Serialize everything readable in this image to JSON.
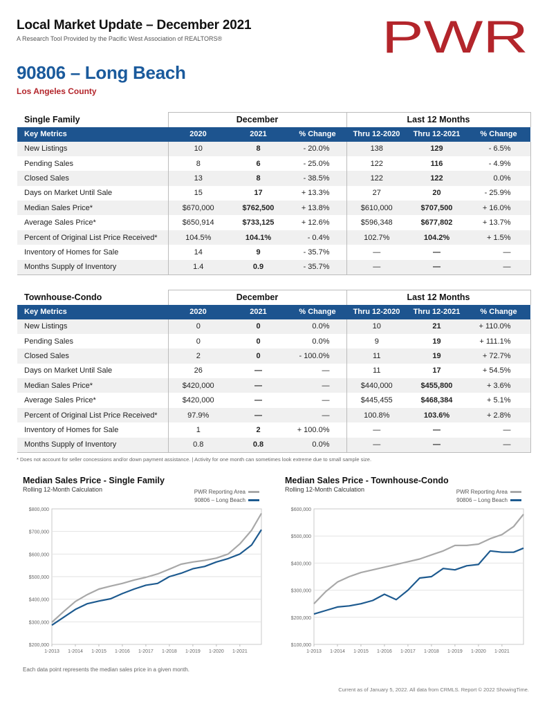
{
  "header": {
    "title": "Local Market Update – December 2021",
    "subtitle": "A Research Tool Provided by the Pacific West Association of REALTORS®",
    "logo_text": "PWR",
    "brand_color": "#b3252b"
  },
  "area": {
    "name": "90806 – Long Beach",
    "county": "Los Angeles County"
  },
  "single_family": {
    "type_label": "Single Family",
    "group_december": "December",
    "group_last12": "Last 12 Months",
    "columns": [
      "Key Metrics",
      "2020",
      "2021",
      "% Change",
      "Thru 12-2020",
      "Thru 12-2021",
      "% Change"
    ],
    "rows": [
      [
        "New Listings",
        "10",
        "8",
        "- 20.0%",
        "138",
        "129",
        "- 6.5%"
      ],
      [
        "Pending Sales",
        "8",
        "6",
        "- 25.0%",
        "122",
        "116",
        "- 4.9%"
      ],
      [
        "Closed Sales",
        "13",
        "8",
        "- 38.5%",
        "122",
        "122",
        "0.0%"
      ],
      [
        "Days on Market Until Sale",
        "15",
        "17",
        "+ 13.3%",
        "27",
        "20",
        "- 25.9%"
      ],
      [
        "Median Sales Price*",
        "$670,000",
        "$762,500",
        "+ 13.8%",
        "$610,000",
        "$707,500",
        "+ 16.0%"
      ],
      [
        "Average Sales Price*",
        "$650,914",
        "$733,125",
        "+ 12.6%",
        "$596,348",
        "$677,802",
        "+ 13.7%"
      ],
      [
        "Percent of Original List Price Received*",
        "104.5%",
        "104.1%",
        "- 0.4%",
        "102.7%",
        "104.2%",
        "+ 1.5%"
      ],
      [
        "Inventory of Homes for Sale",
        "14",
        "9",
        "- 35.7%",
        "—",
        "—",
        "—"
      ],
      [
        "Months Supply of Inventory",
        "1.4",
        "0.9",
        "- 35.7%",
        "—",
        "—",
        "—"
      ]
    ]
  },
  "townhouse_condo": {
    "type_label": "Townhouse-Condo",
    "group_december": "December",
    "group_last12": "Last 12 Months",
    "columns": [
      "Key Metrics",
      "2020",
      "2021",
      "% Change",
      "Thru 12-2020",
      "Thru 12-2021",
      "% Change"
    ],
    "rows": [
      [
        "New Listings",
        "0",
        "0",
        "0.0%",
        "10",
        "21",
        "+ 110.0%"
      ],
      [
        "Pending Sales",
        "0",
        "0",
        "0.0%",
        "9",
        "19",
        "+ 111.1%"
      ],
      [
        "Closed Sales",
        "2",
        "0",
        "- 100.0%",
        "11",
        "19",
        "+ 72.7%"
      ],
      [
        "Days on Market Until Sale",
        "26",
        "—",
        "—",
        "11",
        "17",
        "+ 54.5%"
      ],
      [
        "Median Sales Price*",
        "$420,000",
        "—",
        "—",
        "$440,000",
        "$455,800",
        "+ 3.6%"
      ],
      [
        "Average Sales Price*",
        "$420,000",
        "—",
        "—",
        "$445,455",
        "$468,384",
        "+ 5.1%"
      ],
      [
        "Percent of Original List Price Received*",
        "97.9%",
        "—",
        "—",
        "100.8%",
        "103.6%",
        "+ 2.8%"
      ],
      [
        "Inventory of Homes for Sale",
        "1",
        "2",
        "+ 100.0%",
        "—",
        "—",
        "—"
      ],
      [
        "Months Supply of Inventory",
        "0.8",
        "0.8",
        "0.0%",
        "—",
        "—",
        "—"
      ]
    ]
  },
  "footnote": "* Does not account for seller concessions and/or down payment assistance. | Activity for one month can sometimes look extreme due to small sample size.",
  "chart_note": "Each data point represents the median sales price in a given month.",
  "credit": "Current as of January 5, 2022. All data from CRMLS. Report © 2022 ShowingTime.",
  "colors": {
    "table_header": "#1d548f",
    "title_blue": "#1a5a9c",
    "series_area": "#a8a8a8",
    "series_local": "#1d5a8f"
  },
  "chart_data": [
    {
      "type": "line",
      "title": "Median Sales Price - Single Family",
      "subtitle": "Rolling 12-Month Calculation",
      "x_ticks": [
        "1-2013",
        "1-2014",
        "1-2015",
        "1-2016",
        "1-2017",
        "1-2018",
        "1-2019",
        "1-2020",
        "1-2021"
      ],
      "x_range": [
        "2013-01",
        "2021-12"
      ],
      "y_ticks": [
        "$200,000",
        "$300,000",
        "$400,000",
        "$500,000",
        "$600,000",
        "$700,000",
        "$800,000"
      ],
      "ylim": [
        200000,
        800000
      ],
      "grid": true,
      "legend": "top-right",
      "series": [
        {
          "name": "PWR Reporting Area",
          "color": "#a8a8a8",
          "x": [
            "2013-01",
            "2013-07",
            "2014-01",
            "2014-07",
            "2015-01",
            "2015-07",
            "2016-01",
            "2016-07",
            "2017-01",
            "2017-07",
            "2018-01",
            "2018-07",
            "2019-01",
            "2019-07",
            "2020-01",
            "2020-07",
            "2021-01",
            "2021-07",
            "2021-12"
          ],
          "values": [
            298000,
            345000,
            390000,
            420000,
            445000,
            458000,
            470000,
            485000,
            497000,
            512000,
            533000,
            555000,
            565000,
            572000,
            582000,
            600000,
            645000,
            705000,
            780000
          ]
        },
        {
          "name": "90806 – Long Beach",
          "color": "#1d5a8f",
          "x": [
            "2013-01",
            "2013-07",
            "2014-01",
            "2014-07",
            "2015-01",
            "2015-07",
            "2016-01",
            "2016-07",
            "2017-01",
            "2017-07",
            "2018-01",
            "2018-07",
            "2019-01",
            "2019-07",
            "2020-01",
            "2020-07",
            "2021-01",
            "2021-07",
            "2021-12"
          ],
          "values": [
            285000,
            320000,
            355000,
            380000,
            392000,
            402000,
            425000,
            445000,
            462000,
            470000,
            500000,
            515000,
            535000,
            545000,
            565000,
            580000,
            600000,
            640000,
            708000
          ]
        }
      ]
    },
    {
      "type": "line",
      "title": "Median Sales Price - Townhouse-Condo",
      "subtitle": "Rolling 12-Month Calculation",
      "x_ticks": [
        "1-2013",
        "1-2014",
        "1-2015",
        "1-2016",
        "1-2017",
        "1-2018",
        "1-2019",
        "1-2020",
        "1-2021"
      ],
      "x_range": [
        "2013-01",
        "2021-12"
      ],
      "y_ticks": [
        "$100,000",
        "$200,000",
        "$300,000",
        "$400,000",
        "$500,000",
        "$600,000"
      ],
      "ylim": [
        100000,
        600000
      ],
      "grid": true,
      "legend": "top-right",
      "series": [
        {
          "name": "PWR Reporting Area",
          "color": "#a8a8a8",
          "x": [
            "2013-01",
            "2013-07",
            "2014-01",
            "2014-07",
            "2015-01",
            "2015-07",
            "2016-01",
            "2016-07",
            "2017-01",
            "2017-07",
            "2018-01",
            "2018-07",
            "2019-01",
            "2019-07",
            "2020-01",
            "2020-07",
            "2021-01",
            "2021-07",
            "2021-12"
          ],
          "values": [
            250000,
            295000,
            330000,
            350000,
            365000,
            375000,
            385000,
            395000,
            405000,
            415000,
            430000,
            445000,
            465000,
            465000,
            470000,
            490000,
            505000,
            535000,
            580000
          ]
        },
        {
          "name": "90806 – Long Beach",
          "color": "#1d5a8f",
          "x": [
            "2013-01",
            "2013-07",
            "2014-01",
            "2014-07",
            "2015-01",
            "2015-07",
            "2016-01",
            "2016-07",
            "2017-01",
            "2017-07",
            "2018-01",
            "2018-07",
            "2019-01",
            "2019-07",
            "2020-01",
            "2020-07",
            "2021-01",
            "2021-07",
            "2021-12"
          ],
          "values": [
            212000,
            225000,
            238000,
            242000,
            250000,
            262000,
            285000,
            265000,
            300000,
            345000,
            350000,
            380000,
            375000,
            390000,
            395000,
            445000,
            440000,
            440000,
            455000
          ]
        }
      ]
    }
  ]
}
